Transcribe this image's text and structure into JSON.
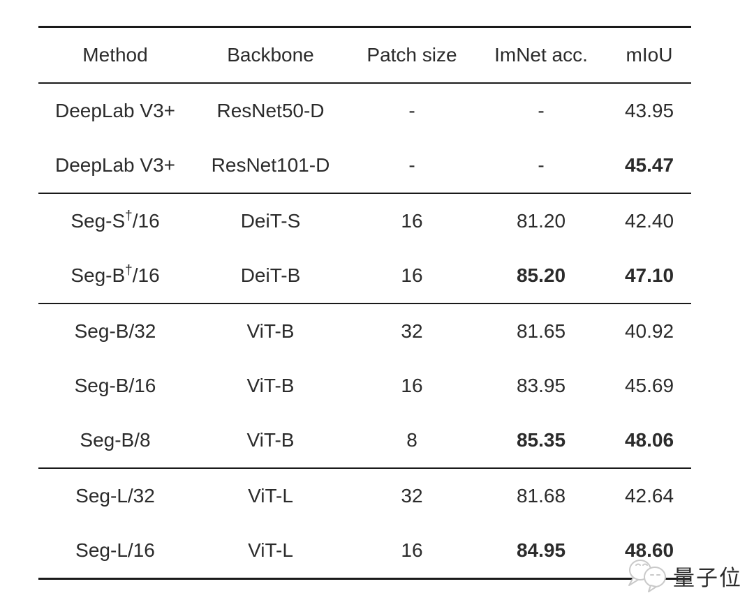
{
  "table": {
    "columns": [
      "Method",
      "Backbone",
      "Patch size",
      "ImNet acc.",
      "mIoU"
    ],
    "sections": [
      {
        "rows": [
          {
            "method": {
              "prefix": "DeepLab V3+",
              "sup": "",
              "suffix": ""
            },
            "backbone": "ResNet50-D",
            "patch": "-",
            "imnet": "-",
            "miou": "43.95",
            "bold": {
              "imnet": false,
              "miou": false
            }
          },
          {
            "method": {
              "prefix": "DeepLab V3+",
              "sup": "",
              "suffix": ""
            },
            "backbone": "ResNet101-D",
            "patch": "-",
            "imnet": "-",
            "miou": "45.47",
            "bold": {
              "imnet": false,
              "miou": true
            }
          }
        ]
      },
      {
        "rows": [
          {
            "method": {
              "prefix": "Seg-S",
              "sup": "†",
              "suffix": "/16"
            },
            "backbone": "DeiT-S",
            "patch": "16",
            "imnet": "81.20",
            "miou": "42.40",
            "bold": {
              "imnet": false,
              "miou": false
            }
          },
          {
            "method": {
              "prefix": "Seg-B",
              "sup": "†",
              "suffix": "/16"
            },
            "backbone": "DeiT-B",
            "patch": "16",
            "imnet": "85.20",
            "miou": "47.10",
            "bold": {
              "imnet": true,
              "miou": true
            }
          }
        ]
      },
      {
        "rows": [
          {
            "method": {
              "prefix": "Seg-B/32",
              "sup": "",
              "suffix": ""
            },
            "backbone": "ViT-B",
            "patch": "32",
            "imnet": "81.65",
            "miou": "40.92",
            "bold": {
              "imnet": false,
              "miou": false
            }
          },
          {
            "method": {
              "prefix": "Seg-B/16",
              "sup": "",
              "suffix": ""
            },
            "backbone": "ViT-B",
            "patch": "16",
            "imnet": "83.95",
            "miou": "45.69",
            "bold": {
              "imnet": false,
              "miou": false
            }
          },
          {
            "method": {
              "prefix": "Seg-B/8",
              "sup": "",
              "suffix": ""
            },
            "backbone": "ViT-B",
            "patch": "8",
            "imnet": "85.35",
            "miou": "48.06",
            "bold": {
              "imnet": true,
              "miou": true
            }
          }
        ]
      },
      {
        "rows": [
          {
            "method": {
              "prefix": "Seg-L/32",
              "sup": "",
              "suffix": ""
            },
            "backbone": "ViT-L",
            "patch": "32",
            "imnet": "81.68",
            "miou": "42.64",
            "bold": {
              "imnet": false,
              "miou": false
            }
          },
          {
            "method": {
              "prefix": "Seg-L/16",
              "sup": "",
              "suffix": ""
            },
            "backbone": "ViT-L",
            "patch": "16",
            "imnet": "84.95",
            "miou": "48.60",
            "bold": {
              "imnet": true,
              "miou": true
            }
          }
        ]
      }
    ]
  },
  "watermark": {
    "text": "量子位",
    "color": "#b9b9b9",
    "logo_stroke": "#c9c9c9"
  },
  "colors": {
    "text": "#2b2b2b",
    "rule": "#1a1a1a",
    "background": "#ffffff"
  }
}
